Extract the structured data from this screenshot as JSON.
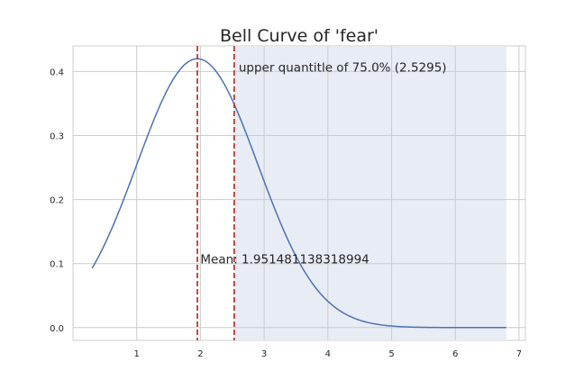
{
  "chart_data": {
    "type": "line",
    "title": "Bell Curve of 'fear'",
    "xlabel": "",
    "ylabel": "",
    "xlim": [
      0.0,
      7.1
    ],
    "ylim": [
      -0.02,
      0.44
    ],
    "xticks": [
      1,
      2,
      3,
      4,
      5,
      6,
      7
    ],
    "yticks": [
      0.0,
      0.1,
      0.2,
      0.3,
      0.4
    ],
    "ytick_labels": [
      "0.0",
      "0.1",
      "0.2",
      "0.3",
      "0.4"
    ],
    "grid": true,
    "series": [
      {
        "name": "bell curve",
        "color": "#4c72b0",
        "distribution": "normal",
        "mean": 1.951481138318994,
        "std": 0.95,
        "x_range": [
          0.3,
          6.8
        ]
      }
    ],
    "shaded_region": {
      "x_from": 2.5295,
      "x_to": 6.8,
      "color": "#e8ecf5"
    },
    "vlines": [
      {
        "name": "mean-line",
        "x": 1.951481138318994,
        "color": "#c0392b"
      },
      {
        "name": "quantile-line",
        "x": 2.5295,
        "color": "#c0392b"
      }
    ],
    "annotations": [
      {
        "name": "quantile-annotation",
        "text": "upper quantitle of 75.0% (2.5295)",
        "x": 2.6,
        "y": 0.4
      },
      {
        "name": "mean-annotation",
        "text": "Mean: 1.951481138318994",
        "x": 2.0,
        "y": 0.1
      }
    ]
  }
}
